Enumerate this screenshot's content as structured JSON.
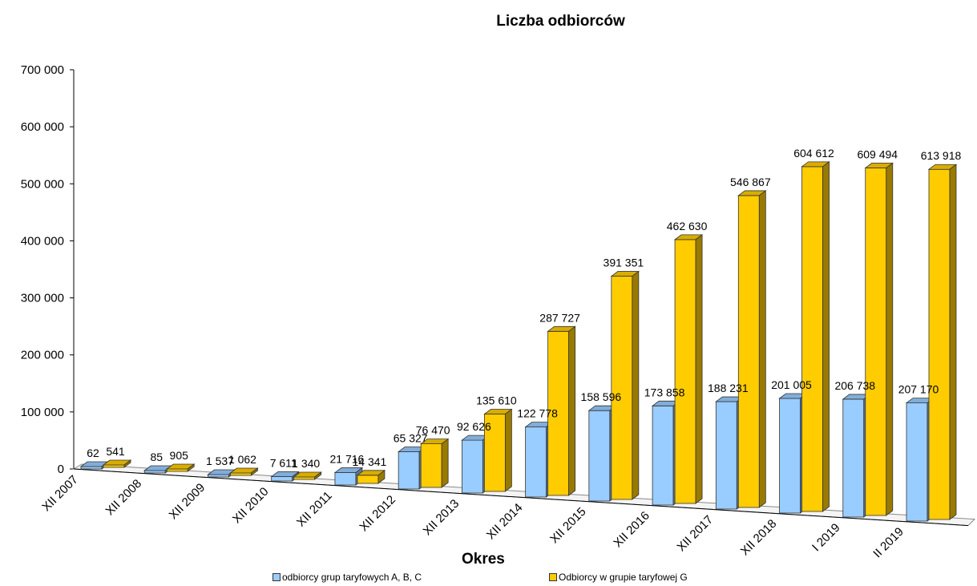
{
  "chart_data": {
    "type": "bar",
    "title": "Liczba odbiorców",
    "xlabel": "Okres",
    "ylabel": "",
    "ylim": [
      0,
      700000
    ],
    "yticks": [
      0,
      100000,
      200000,
      300000,
      400000,
      500000,
      600000,
      700000
    ],
    "ytick_labels": [
      "0",
      "100 000",
      "200 000",
      "300 000",
      "400 000",
      "500 000",
      "600 000",
      "700 000"
    ],
    "categories": [
      "XII 2007",
      "XII 2008",
      "XII 2009",
      "XII 2010",
      "XII 2011",
      "XII 2012",
      "XII 2013",
      "XII 2014",
      "XII 2015",
      "XII 2016",
      "XII 2017",
      "XII 2018",
      "I 2019",
      "II 2019"
    ],
    "series": [
      {
        "name": "odbiorcy grup taryfowych A, B, C",
        "color": "#99CCFF",
        "values": [
          62,
          85,
          1537,
          7611,
          21716,
          65327,
          92626,
          122778,
          158596,
          173858,
          188231,
          201005,
          206738,
          207170
        ],
        "labels": [
          "62",
          "85",
          "1 537",
          "7 611",
          "21 716",
          "65 327",
          "92 626",
          "122 778",
          "158 596",
          "173 858",
          "188 231",
          "201 005",
          "206 738",
          "207 170"
        ]
      },
      {
        "name": "Odbiorcy w grupie taryfowej G",
        "color": "#FFCC00",
        "values": [
          541,
          905,
          1062,
          1340,
          14341,
          76470,
          135610,
          287727,
          391351,
          462630,
          546867,
          604612,
          609494,
          613918
        ],
        "labels": [
          "541",
          "905",
          "1 062",
          "1 340",
          "14 341",
          "76 470",
          "135 610",
          "287 727",
          "391 351",
          "462 630",
          "546 867",
          "604 612",
          "609 494",
          "613 918"
        ]
      }
    ],
    "grid": false,
    "legend_position": "bottom"
  }
}
